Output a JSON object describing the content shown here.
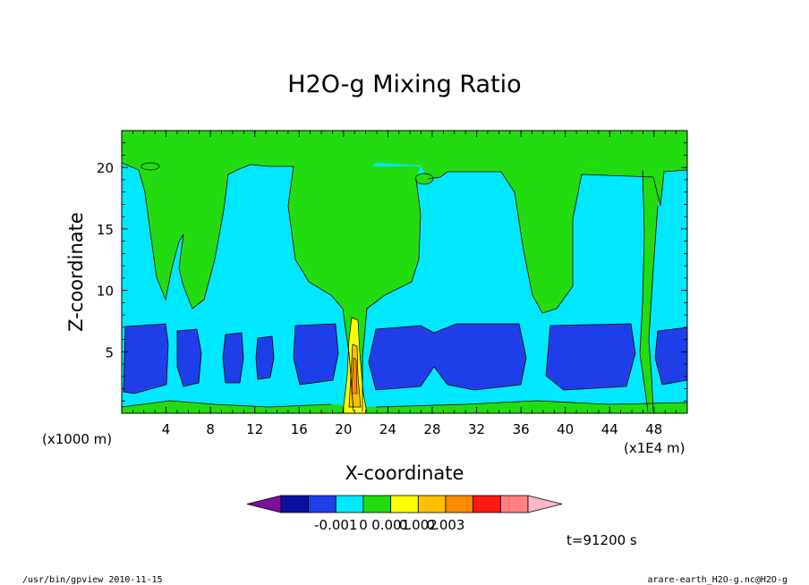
{
  "chart_data": {
    "type": "heatmap",
    "title": "H2O-g Mixing Ratio",
    "xlabel": "X-coordinate",
    "ylabel": "Z-coordinate",
    "x_unit_left": "(x1000 m)",
    "x_unit_right": "(x1E4 m)",
    "xticks": [
      "4",
      "8",
      "12",
      "16",
      "20",
      "24",
      "28",
      "32",
      "36",
      "40",
      "44",
      "48"
    ],
    "yticks": [
      "5",
      "10",
      "15",
      "20"
    ],
    "xlim": [
      0,
      51
    ],
    "ylim": [
      0,
      23
    ],
    "colorbar": {
      "colors": [
        "#7b0f9e",
        "#0a0fa0",
        "#1d3ee8",
        "#00e8ff",
        "#22dc10",
        "#ffff00",
        "#ffc000",
        "#ff8a00",
        "#ff1a10",
        "#ff8080",
        "#ffb6c8"
      ],
      "labels": [
        "-0.001",
        "0",
        "0.001",
        "0.002",
        "0.003"
      ]
    },
    "time_label": "t=91200 s"
  },
  "footer": {
    "left": "/usr/bin/gpview  2010-11-15",
    "right": "arare-earth_H2O-g.nc@H2O-g"
  }
}
